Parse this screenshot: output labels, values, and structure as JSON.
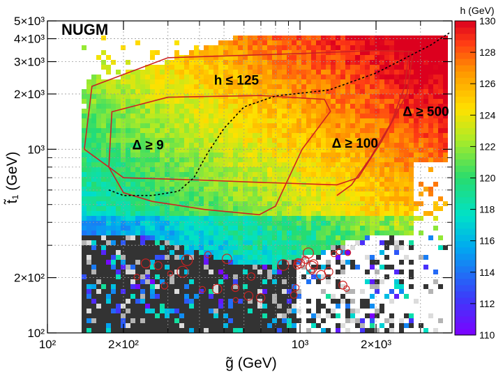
{
  "chart_data": {
    "type": "heatmap",
    "title": "NUGM",
    "xlabel": "g̃ (GeV)",
    "ylabel": "t̃₁ (GeV)",
    "xscale": "log",
    "yscale": "log",
    "xlim": [
      100,
      4000
    ],
    "ylim": [
      100,
      5000
    ],
    "grid": true,
    "x_ticks": [
      {
        "value": 100,
        "label": "10²"
      },
      {
        "value": 200,
        "label": "2×10²"
      },
      {
        "value": 1000,
        "label": "10³"
      },
      {
        "value": 2000,
        "label": "2×10³"
      }
    ],
    "y_ticks": [
      {
        "value": 100,
        "label": "10²"
      },
      {
        "value": 200,
        "label": "2×10²"
      },
      {
        "value": 1000,
        "label": "10³"
      },
      {
        "value": 2000,
        "label": "2×10³"
      },
      {
        "value": 3000,
        "label": "3×10³"
      },
      {
        "value": 4000,
        "label": "4×10³"
      },
      {
        "value": 5000,
        "label": "5×10³"
      }
    ],
    "colorbar": {
      "title": "h (GeV)",
      "min": 110,
      "max": 130,
      "ticks": [
        110,
        112,
        114,
        116,
        118,
        120,
        122,
        124,
        126,
        128,
        130
      ]
    },
    "annotations": [
      {
        "text": "h ≤ 125",
        "x": 560,
        "y": 2250
      },
      {
        "text": "Δ ≥ 9",
        "x": 250,
        "y": 1000
      },
      {
        "text": "Δ ≥ 100",
        "x": 1650,
        "y": 1020
      },
      {
        "text": "Δ ≥ 500",
        "x": 3150,
        "y": 1520
      }
    ],
    "contours": {
      "delta_9": [
        [
          175,
          800
        ],
        [
          180,
          1600
        ],
        [
          300,
          1920
        ],
        [
          700,
          1960
        ],
        [
          1250,
          1870
        ],
        [
          1320,
          1610
        ],
        [
          1020,
          1000
        ],
        [
          800,
          490
        ],
        [
          690,
          440
        ],
        [
          420,
          470
        ],
        [
          260,
          520
        ],
        [
          200,
          580
        ],
        [
          175,
          800
        ]
      ],
      "delta_100": [
        [
          140,
          1000
        ],
        [
          150,
          2200
        ],
        [
          300,
          3150
        ],
        [
          1000,
          3320
        ],
        [
          2000,
          3450
        ],
        [
          2800,
          3400
        ],
        [
          2650,
          2000
        ],
        [
          2100,
          1100
        ],
        [
          1700,
          700
        ],
        [
          1400,
          640
        ],
        [
          700,
          660
        ],
        [
          400,
          680
        ],
        [
          200,
          700
        ],
        [
          140,
          1000
        ]
      ],
      "delta_500": [
        [
          2700,
          3450
        ],
        [
          2600,
          2200
        ],
        [
          2300,
          1400
        ],
        [
          1900,
          900
        ],
        [
          1600,
          640
        ],
        [
          1400,
          560
        ]
      ],
      "h_125": [
        [
          3900,
          4300
        ],
        [
          3300,
          3700
        ],
        [
          2000,
          2600
        ],
        [
          1300,
          2100
        ],
        [
          800,
          1950
        ],
        [
          600,
          1700
        ],
        [
          500,
          1300
        ],
        [
          430,
          950
        ],
        [
          380,
          700
        ],
        [
          330,
          590
        ],
        [
          260,
          560
        ],
        [
          200,
          560
        ],
        [
          175,
          600
        ]
      ]
    },
    "note": "dense h-mass scatter cells (not enumerable) rendered procedurally"
  }
}
